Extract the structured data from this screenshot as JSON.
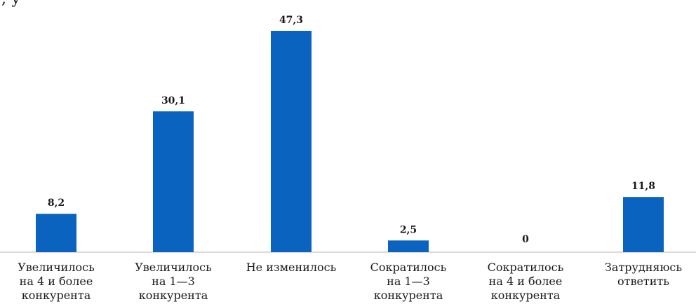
{
  "header_fragment": ", у",
  "chart_data": {
    "type": "bar",
    "categories": [
      [
        "Увеличилось",
        "на 4 и более",
        "конкурента"
      ],
      [
        "Увеличилось",
        "на 1—3",
        "конкурента"
      ],
      [
        "Не изменилось"
      ],
      [
        "Сократилось",
        "на 1—3",
        "конкурента"
      ],
      [
        "Сократилось",
        "на 4 и более",
        "конкурента"
      ],
      [
        "Затрудняюсь",
        "ответить"
      ]
    ],
    "values": [
      8.2,
      30.1,
      47.3,
      2.5,
      0,
      11.8
    ],
    "value_labels": [
      "8,2",
      "30,1",
      "47,3",
      "2,5",
      "0",
      "11,8"
    ],
    "bar_color": "#0a64bf",
    "ylim": [
      0,
      47.3
    ],
    "grid": false,
    "legend": "none"
  }
}
